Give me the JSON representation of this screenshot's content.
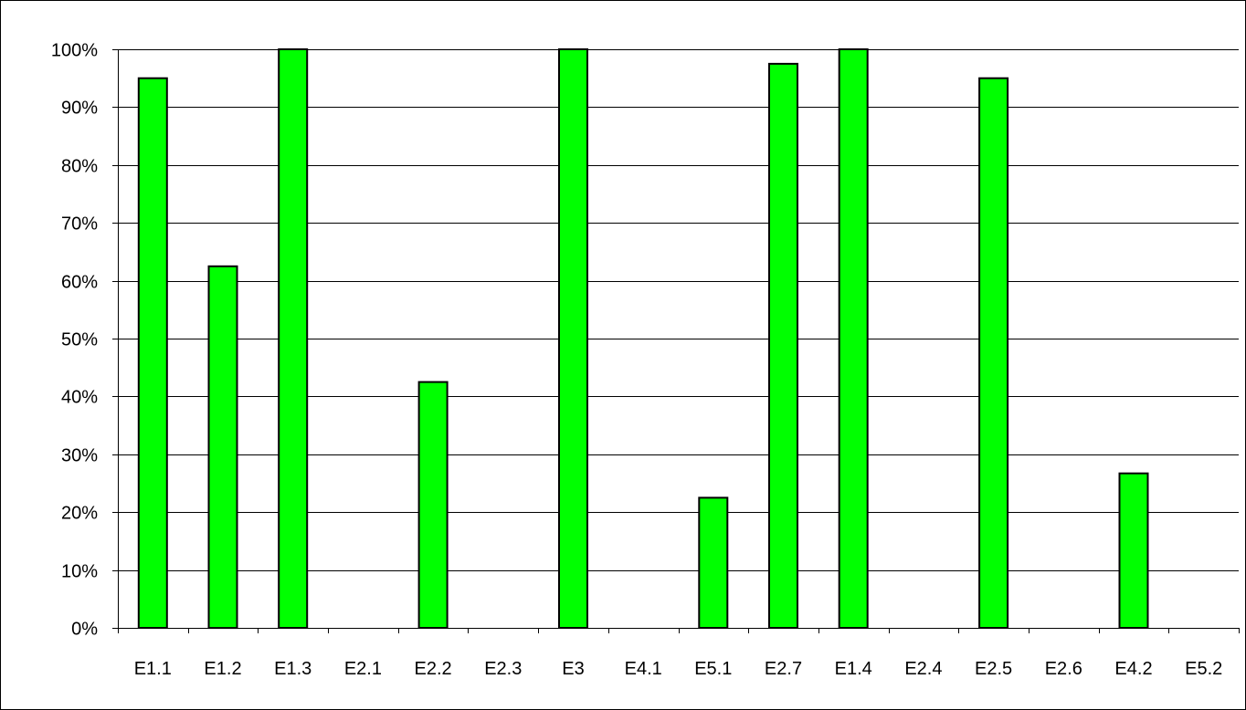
{
  "chart_data": {
    "type": "bar",
    "title": "",
    "xlabel": "",
    "ylabel": "",
    "categories": [
      "E1.1",
      "E1.2",
      "E1.3",
      "E2.1",
      "E2.2",
      "E2.3",
      "E3",
      "E4.1",
      "E5.1",
      "E2.7",
      "E1.4",
      "E2.4",
      "E2.5",
      "E2.6",
      "E4.2",
      "E5.2"
    ],
    "values": [
      0.95,
      0.625,
      1.0,
      0,
      0.425,
      0,
      1.0,
      0,
      0.225,
      0.975,
      1.0,
      0,
      0.95,
      0,
      0.267,
      0
    ],
    "ylim": [
      0,
      1
    ],
    "yticks": [
      0,
      0.1,
      0.2,
      0.3,
      0.4,
      0.5,
      0.6,
      0.7,
      0.8,
      0.9,
      1.0
    ],
    "ytick_labels": [
      "0%",
      "10%",
      "20%",
      "30%",
      "40%",
      "50%",
      "60%",
      "70%",
      "80%",
      "90%",
      "100%"
    ],
    "grid": true,
    "legend": "none",
    "bar_color": "#00ff00",
    "bar_outline_color": "#000000"
  }
}
